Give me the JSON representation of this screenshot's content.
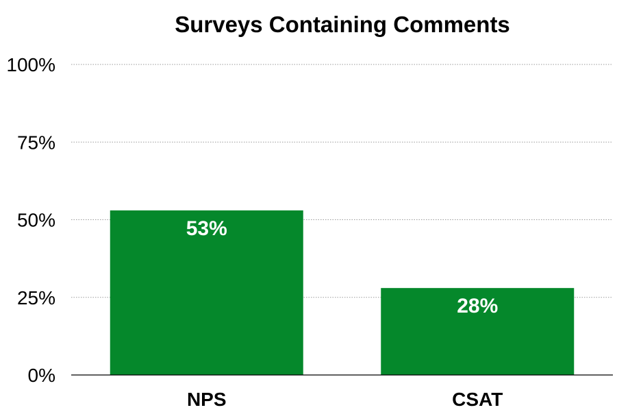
{
  "chart_data": {
    "type": "bar",
    "title": "Surveys Containing Comments",
    "categories": [
      "NPS",
      "CSAT"
    ],
    "values": [
      53,
      28
    ],
    "data_labels": [
      "53%",
      "28%"
    ],
    "yticks": [
      0,
      25,
      50,
      75,
      100
    ],
    "ytick_labels": [
      "0%",
      "25%",
      "50%",
      "75%",
      "100%"
    ],
    "ylim": [
      0,
      100
    ],
    "xlabel": "",
    "ylabel": "",
    "grid": true,
    "colors": {
      "bar": "#05882b",
      "grid": "#9a9a9a",
      "label": "#ffffff"
    }
  }
}
